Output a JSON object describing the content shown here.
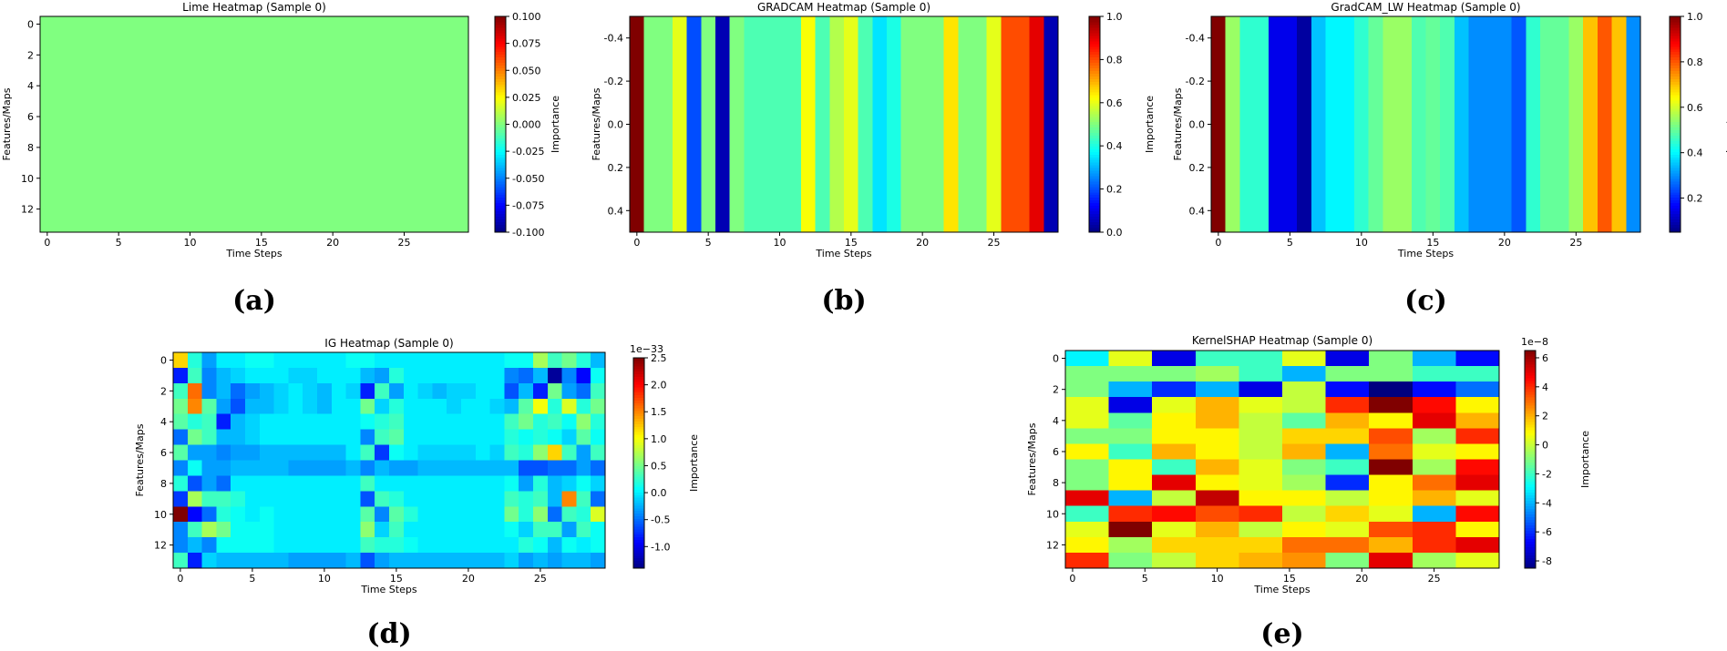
{
  "chart_data": [
    {
      "type": "heatmap",
      "panel_label": "(a)",
      "title": "Lime Heatmap (Sample 0)",
      "xlabel": "Time Steps",
      "ylabel": "Features/Maps",
      "xticks": [
        0,
        5,
        10,
        15,
        20,
        25
      ],
      "yticks": [
        0,
        2,
        4,
        6,
        8,
        10,
        12
      ],
      "colorbar": {
        "label": "Importance",
        "vmin": -0.1,
        "vmax": 0.1,
        "ticks": [
          "-0.100",
          "-0.075",
          "-0.050",
          "-0.025",
          "0.000",
          "0.025",
          "0.050",
          "0.075",
          "0.100"
        ],
        "multiplier": ""
      },
      "xlim": [
        -0.5,
        29.5
      ],
      "ylim": [
        13.5,
        -0.5
      ],
      "rows": 14,
      "cols": 30,
      "constant_value": 0,
      "values": []
    },
    {
      "type": "heatmap",
      "panel_label": "(b)",
      "title": "GRADCAM Heatmap (Sample 0)",
      "xlabel": "Time Steps",
      "ylabel": "Features/Maps",
      "xticks": [
        0,
        5,
        10,
        15,
        20,
        25
      ],
      "yticks": [
        "-0.4",
        "-0.2",
        "0.0",
        "0.2",
        "0.4"
      ],
      "colorbar": {
        "label": "Importance",
        "vmin": 0,
        "vmax": 1,
        "ticks": [
          "0.0",
          "0.2",
          "0.4",
          "0.6",
          "0.8",
          "1.0"
        ],
        "multiplier": ""
      },
      "xlim": [
        -0.5,
        29.5
      ],
      "ylim": [
        0.5,
        -0.5
      ],
      "rows": 1,
      "cols": 30,
      "values": [
        [
          1.0,
          0.5,
          0.5,
          0.6,
          0.2,
          0.5,
          0.05,
          0.5,
          0.45,
          0.45,
          0.45,
          0.45,
          0.62,
          0.45,
          0.55,
          0.6,
          0.45,
          0.35,
          0.4,
          0.5,
          0.5,
          0.5,
          0.65,
          0.5,
          0.5,
          0.6,
          0.8,
          0.8,
          0.9,
          0.05
        ]
      ]
    },
    {
      "type": "heatmap",
      "panel_label": "(c)",
      "title": "GradCAM_LW Heatmap (Sample 0)",
      "xlabel": "Time Steps",
      "ylabel": "Features/Maps",
      "xticks": [
        0,
        5,
        10,
        15,
        20,
        25
      ],
      "yticks": [
        "-0.4",
        "-0.2",
        "0.0",
        "0.2",
        "0.4"
      ],
      "colorbar": {
        "label": "Importance",
        "vmin": 0.05,
        "vmax": 1,
        "ticks": [
          "0.2",
          "0.4",
          "0.6",
          "0.8",
          "1.0"
        ],
        "multiplier": ""
      },
      "xlim": [
        -0.5,
        29.5
      ],
      "ylim": [
        0.5,
        -0.5
      ],
      "rows": 1,
      "cols": 30,
      "values": [
        [
          1.0,
          0.55,
          0.45,
          0.45,
          0.15,
          0.15,
          0.08,
          0.35,
          0.4,
          0.4,
          0.45,
          0.5,
          0.55,
          0.55,
          0.48,
          0.5,
          0.48,
          0.35,
          0.3,
          0.3,
          0.3,
          0.25,
          0.45,
          0.5,
          0.5,
          0.55,
          0.7,
          0.8,
          0.7,
          0.3
        ]
      ]
    },
    {
      "type": "heatmap",
      "panel_label": "(d)",
      "title": "IG Heatmap (Sample 0)",
      "xlabel": "Time Steps",
      "ylabel": "Features/Maps",
      "xticks": [
        0,
        5,
        10,
        15,
        20,
        25
      ],
      "yticks": [
        0,
        2,
        4,
        6,
        8,
        10,
        12
      ],
      "colorbar": {
        "label": "Importance",
        "vmin": -1.4,
        "vmax": 2.5,
        "ticks": [
          "-1.0",
          "-0.5",
          "0.0",
          "0.5",
          "1.0",
          "1.5",
          "2.0",
          "2.5"
        ],
        "multiplier": "1e−33"
      },
      "xlim": [
        -0.5,
        29.5
      ],
      "ylim": [
        13.5,
        -0.5
      ],
      "rows": 14,
      "cols": 30,
      "values": [
        [
          1.2,
          0.2,
          -0.3,
          0,
          0,
          0.1,
          0.1,
          0,
          0,
          0,
          0,
          0,
          0.1,
          0.1,
          0,
          0,
          0,
          0,
          0,
          0,
          0,
          0,
          0,
          0.1,
          0.1,
          0.7,
          0.3,
          0.5,
          0.2,
          -0.2
        ],
        [
          -0.8,
          0.3,
          -0.4,
          -0.2,
          -0.1,
          0,
          0,
          0,
          -0.1,
          -0.1,
          0,
          0,
          0,
          -0.2,
          -0.3,
          0.2,
          0,
          0,
          0,
          0,
          0,
          0,
          0,
          -0.4,
          -0.5,
          -0.2,
          -1.3,
          -0.4,
          -0.9,
          0.1
        ],
        [
          0.3,
          1.6,
          -0.4,
          -0.2,
          -0.5,
          -0.3,
          -0.2,
          -0.1,
          0,
          -0.1,
          -0.2,
          0,
          -0.1,
          -0.8,
          0.3,
          -0.3,
          0,
          -0.1,
          -0.2,
          -0.1,
          -0.1,
          0,
          0,
          -0.6,
          -0.2,
          -0.8,
          0.5,
          -0.3,
          -0.5,
          0.3
        ],
        [
          0.5,
          1.5,
          0.4,
          -0.3,
          -0.6,
          -0.2,
          -0.2,
          -0.1,
          0,
          -0.1,
          -0.2,
          0,
          0,
          0.5,
          -0.1,
          0.2,
          0,
          0,
          0,
          -0.1,
          0,
          0,
          -0.1,
          -0.2,
          0.4,
          1.0,
          0.2,
          0.9,
          0.2,
          0.5
        ],
        [
          0.4,
          0.2,
          0.3,
          -0.8,
          -0.2,
          -0.1,
          0,
          0,
          0,
          0,
          0,
          0,
          0,
          0.1,
          0.2,
          0.3,
          0,
          0,
          0,
          0,
          0,
          0,
          0,
          0.3,
          0.5,
          0.2,
          0.3,
          0.1,
          0.6,
          0.2
        ],
        [
          -0.5,
          0.5,
          0.3,
          -0.2,
          -0.2,
          -0.1,
          0,
          0,
          0,
          0,
          0,
          0,
          0,
          -0.4,
          0.3,
          0.4,
          0,
          0,
          0,
          0,
          0,
          0,
          0,
          0.2,
          0.1,
          0.2,
          0.1,
          -0.1,
          0.4,
          0.1
        ],
        [
          0.4,
          -0.3,
          -0.3,
          -0.4,
          -0.3,
          -0.3,
          -0.2,
          -0.2,
          -0.2,
          -0.2,
          -0.2,
          -0.2,
          0,
          0.3,
          -0.7,
          0.1,
          0,
          -0.1,
          -0.1,
          -0.1,
          -0.1,
          0,
          -0.1,
          0.3,
          0.2,
          0.6,
          1.2,
          0.3,
          -0.3,
          0.3
        ],
        [
          -0.4,
          0.1,
          -0.3,
          -0.3,
          -0.2,
          -0.2,
          -0.2,
          -0.2,
          -0.3,
          -0.3,
          -0.3,
          -0.3,
          -0.2,
          -0.4,
          -0.2,
          -0.3,
          -0.3,
          -0.2,
          -0.2,
          -0.2,
          -0.2,
          -0.2,
          -0.2,
          -0.2,
          -0.6,
          -0.6,
          -0.5,
          -0.5,
          -0.3,
          -0.5
        ],
        [
          0.2,
          -0.6,
          -0.3,
          -0.5,
          0,
          0,
          0,
          0,
          0,
          0,
          0,
          0,
          0,
          0.3,
          0,
          0,
          0,
          0,
          0,
          0,
          0,
          0,
          0,
          0.1,
          -0.3,
          0.2,
          -0.2,
          -0.1,
          0.1,
          -0.1
        ],
        [
          -0.7,
          0.7,
          0.3,
          0.3,
          0.2,
          0,
          0,
          0,
          0,
          0,
          0,
          0,
          0,
          -0.6,
          0.3,
          0.2,
          0,
          0,
          0,
          0,
          0,
          0,
          0,
          0.3,
          0.2,
          0.3,
          -0.2,
          1.5,
          0.3,
          -0.5
        ],
        [
          2.5,
          -0.9,
          -0.5,
          0.2,
          0.1,
          0,
          0.1,
          0,
          0,
          0,
          0,
          0,
          0,
          0.4,
          -0.4,
          0.4,
          0.2,
          0,
          0,
          0,
          0,
          0,
          0,
          0.5,
          0.2,
          0.6,
          -0.5,
          0.3,
          0.2,
          0.9
        ],
        [
          -0.4,
          0.3,
          0.7,
          0.5,
          0.1,
          0.1,
          0.1,
          0,
          0,
          0,
          0,
          0,
          0,
          0.6,
          -0.1,
          0.3,
          0,
          0,
          0,
          0,
          0,
          0,
          0,
          0.1,
          -0.1,
          0.3,
          0.3,
          -0.3,
          0.3,
          0.1
        ],
        [
          -0.4,
          -0.2,
          -0.4,
          0.1,
          0.1,
          0.1,
          0.1,
          0,
          0,
          0,
          0,
          0,
          0,
          0.3,
          0.2,
          0.2,
          0.1,
          0,
          0,
          0,
          0,
          0,
          0,
          0,
          0.2,
          0.1,
          -0.2,
          0.1,
          0,
          0.1
        ],
        [
          0.3,
          -0.8,
          -0.1,
          -0.2,
          -0.2,
          -0.2,
          -0.2,
          -0.2,
          -0.3,
          -0.3,
          -0.3,
          -0.3,
          -0.2,
          -0.6,
          -0.3,
          -0.2,
          -0.2,
          -0.2,
          -0.2,
          -0.2,
          -0.2,
          -0.2,
          -0.2,
          -0.1,
          -0.3,
          -0.2,
          -0.3,
          -0.2,
          -0.2,
          -0.3
        ]
      ]
    },
    {
      "type": "heatmap",
      "panel_label": "(e)",
      "title": "KernelSHAP Heatmap (Sample 0)",
      "xlabel": "Time Steps",
      "ylabel": "Features/Maps",
      "xticks": [
        0,
        5,
        10,
        15,
        20,
        25
      ],
      "yticks": [
        0,
        2,
        4,
        6,
        8,
        10,
        12
      ],
      "colorbar": {
        "label": "Importance",
        "vmin": -8.5,
        "vmax": 6.5,
        "ticks": [
          "-8",
          "-6",
          "-4",
          "-2",
          "0",
          "2",
          "4",
          "6"
        ],
        "multiplier": "1e−8"
      },
      "xlim": [
        -0.5,
        29.5
      ],
      "ylim": [
        13.5,
        -0.5
      ],
      "rows": 14,
      "cols": 10,
      "values": [
        [
          -3,
          0.5,
          -7,
          -2,
          -2,
          0.5,
          -7,
          -1,
          -4,
          -6.5
        ],
        [
          -1,
          -1,
          -1,
          -0.5,
          -2,
          -4,
          -1,
          -1,
          -2,
          -2
        ],
        [
          -1,
          -4,
          -6,
          -4,
          -7,
          0,
          -6.5,
          -8.5,
          -6.5,
          -5
        ],
        [
          0.5,
          -7,
          0.5,
          2,
          0.5,
          0,
          4,
          6.5,
          4.5,
          1
        ],
        [
          0.5,
          -1.5,
          1,
          2,
          0,
          -1.5,
          2,
          1,
          5,
          2
        ],
        [
          -1,
          -1,
          1,
          1,
          0,
          1.5,
          1.5,
          3.5,
          -0.5,
          4
        ],
        [
          1,
          -2,
          2,
          1,
          0,
          2,
          -4,
          3,
          0.5,
          1
        ],
        [
          -1,
          1,
          -2,
          2,
          0.5,
          -1,
          -2,
          6.5,
          -0.5,
          4.5
        ],
        [
          -1,
          1,
          5,
          1,
          0.5,
          -0.5,
          -6,
          1,
          3,
          5
        ],
        [
          5,
          -4,
          0,
          5.5,
          1,
          1,
          0,
          1,
          2,
          0.5
        ],
        [
          -2,
          4,
          4.5,
          3.5,
          4,
          0,
          1.5,
          0.5,
          -4,
          4.5
        ],
        [
          0.5,
          6.5,
          0.5,
          2,
          0,
          1,
          0.5,
          3.5,
          4,
          1
        ],
        [
          1,
          -0.5,
          1.5,
          1.5,
          1.5,
          3,
          3,
          2,
          4,
          5
        ],
        [
          4,
          -1,
          0,
          1.5,
          2,
          2.5,
          -1,
          5,
          -0.5,
          0.5
        ]
      ]
    }
  ]
}
